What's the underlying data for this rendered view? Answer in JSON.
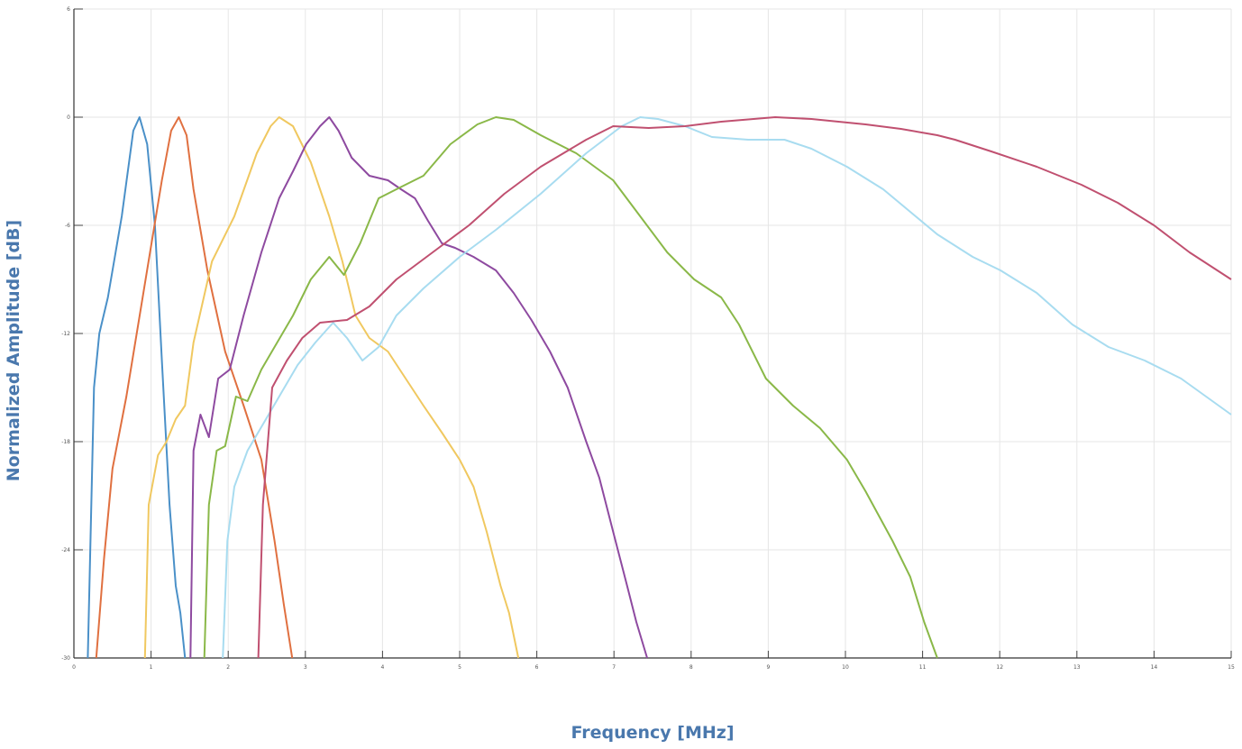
{
  "chart_data": {
    "type": "line",
    "title": "",
    "xlabel": "Frequency [MHz]",
    "ylabel": "Normalized Amplitude [dB]",
    "xlim": [
      0,
      15
    ],
    "ylim": [
      -30,
      6
    ],
    "xticks": [
      0,
      1,
      2,
      3,
      4,
      5,
      6,
      7,
      8,
      9,
      10,
      11,
      12,
      13,
      14,
      15
    ],
    "yticks": [
      6,
      0,
      -6,
      -12,
      -18,
      -24,
      -30
    ],
    "grid": true,
    "series": [
      {
        "color": "#4a90c8",
        "points": [
          [
            0.18,
            -30
          ],
          [
            0.26,
            -15
          ],
          [
            0.33,
            -12
          ],
          [
            0.44,
            -10
          ],
          [
            0.62,
            -5.5
          ],
          [
            0.77,
            -0.75
          ],
          [
            0.85,
            0
          ],
          [
            0.95,
            -1.5
          ],
          [
            1.05,
            -6
          ],
          [
            1.14,
            -13.5
          ],
          [
            1.24,
            -21.5
          ],
          [
            1.32,
            -26
          ],
          [
            1.38,
            -27.5
          ],
          [
            1.44,
            -30
          ]
        ]
      },
      {
        "color": "#e07040",
        "points": [
          [
            0.29,
            -30
          ],
          [
            0.39,
            -24.5
          ],
          [
            0.5,
            -19.5
          ],
          [
            0.68,
            -15.5
          ],
          [
            0.91,
            -9.5
          ],
          [
            1.14,
            -3.5
          ],
          [
            1.26,
            -0.75
          ],
          [
            1.36,
            0
          ],
          [
            1.46,
            -1
          ],
          [
            1.55,
            -4
          ],
          [
            1.73,
            -8.5
          ],
          [
            1.96,
            -13
          ],
          [
            2.2,
            -16
          ],
          [
            2.43,
            -19
          ],
          [
            2.6,
            -23.5
          ],
          [
            2.72,
            -27
          ],
          [
            2.83,
            -30
          ]
        ]
      },
      {
        "color": "#f0c860",
        "points": [
          [
            0.92,
            -30
          ],
          [
            0.97,
            -21.5
          ],
          [
            1.09,
            -18.75
          ],
          [
            1.2,
            -18
          ],
          [
            1.32,
            -16.75
          ],
          [
            1.44,
            -16
          ],
          [
            1.55,
            -12.5
          ],
          [
            1.79,
            -8
          ],
          [
            2.08,
            -5.5
          ],
          [
            2.37,
            -2
          ],
          [
            2.55,
            -0.5
          ],
          [
            2.66,
            0
          ],
          [
            2.84,
            -0.5
          ],
          [
            3.07,
            -2.5
          ],
          [
            3.31,
            -5.5
          ],
          [
            3.48,
            -8
          ],
          [
            3.65,
            -11
          ],
          [
            3.83,
            -12.25
          ],
          [
            4.07,
            -13
          ],
          [
            4.3,
            -14.5
          ],
          [
            4.53,
            -16
          ],
          [
            4.77,
            -17.5
          ],
          [
            5.0,
            -19
          ],
          [
            5.18,
            -20.5
          ],
          [
            5.35,
            -23
          ],
          [
            5.53,
            -26
          ],
          [
            5.64,
            -27.5
          ],
          [
            5.76,
            -30
          ]
        ]
      },
      {
        "color": "#8e4aa0",
        "points": [
          [
            1.51,
            -30
          ],
          [
            1.55,
            -18.5
          ],
          [
            1.64,
            -16.5
          ],
          [
            1.75,
            -17.75
          ],
          [
            1.87,
            -14.5
          ],
          [
            2.02,
            -14
          ],
          [
            2.2,
            -11
          ],
          [
            2.43,
            -7.5
          ],
          [
            2.66,
            -4.5
          ],
          [
            2.84,
            -3
          ],
          [
            3.01,
            -1.5
          ],
          [
            3.19,
            -0.5
          ],
          [
            3.31,
            0
          ],
          [
            3.43,
            -0.75
          ],
          [
            3.6,
            -2.25
          ],
          [
            3.83,
            -3.25
          ],
          [
            4.07,
            -3.5
          ],
          [
            4.24,
            -4
          ],
          [
            4.42,
            -4.5
          ],
          [
            4.59,
            -5.75
          ],
          [
            4.77,
            -7
          ],
          [
            4.94,
            -7.25
          ],
          [
            5.18,
            -7.75
          ],
          [
            5.47,
            -8.5
          ],
          [
            5.7,
            -9.75
          ],
          [
            5.93,
            -11.25
          ],
          [
            6.17,
            -13
          ],
          [
            6.4,
            -15
          ],
          [
            6.64,
            -18
          ],
          [
            6.81,
            -20
          ],
          [
            6.99,
            -23
          ],
          [
            7.17,
            -26
          ],
          [
            7.29,
            -28
          ],
          [
            7.43,
            -30
          ]
        ]
      },
      {
        "color": "#8ab848",
        "points": [
          [
            1.69,
            -30
          ],
          [
            1.75,
            -21.5
          ],
          [
            1.85,
            -18.5
          ],
          [
            1.96,
            -18.25
          ],
          [
            2.1,
            -15.5
          ],
          [
            2.25,
            -15.75
          ],
          [
            2.43,
            -14
          ],
          [
            2.6,
            -12.75
          ],
          [
            2.84,
            -11
          ],
          [
            3.07,
            -9
          ],
          [
            3.31,
            -7.75
          ],
          [
            3.5,
            -8.75
          ],
          [
            3.71,
            -7
          ],
          [
            3.95,
            -4.5
          ],
          [
            4.18,
            -4
          ],
          [
            4.53,
            -3.25
          ],
          [
            4.88,
            -1.5
          ],
          [
            5.23,
            -0.4
          ],
          [
            5.47,
            0
          ],
          [
            5.7,
            -0.15
          ],
          [
            6.05,
            -1
          ],
          [
            6.51,
            -2
          ],
          [
            6.99,
            -3.5
          ],
          [
            7.34,
            -5.5
          ],
          [
            7.69,
            -7.5
          ],
          [
            8.04,
            -9
          ],
          [
            8.39,
            -10
          ],
          [
            8.62,
            -11.5
          ],
          [
            8.97,
            -14.5
          ],
          [
            9.32,
            -16
          ],
          [
            9.67,
            -17.25
          ],
          [
            10.02,
            -19
          ],
          [
            10.26,
            -20.75
          ],
          [
            10.61,
            -23.5
          ],
          [
            10.84,
            -25.5
          ],
          [
            11.02,
            -28
          ],
          [
            11.19,
            -30
          ]
        ]
      },
      {
        "color": "#a8dcf0",
        "points": [
          [
            1.93,
            -30
          ],
          [
            1.99,
            -23.5
          ],
          [
            2.08,
            -20.5
          ],
          [
            2.25,
            -18.5
          ],
          [
            2.49,
            -16.75
          ],
          [
            2.66,
            -15.5
          ],
          [
            2.9,
            -13.75
          ],
          [
            3.13,
            -12.5
          ],
          [
            3.36,
            -11.4
          ],
          [
            3.54,
            -12.25
          ],
          [
            3.74,
            -13.5
          ],
          [
            3.95,
            -12.75
          ],
          [
            4.18,
            -11
          ],
          [
            4.53,
            -9.5
          ],
          [
            5.0,
            -7.75
          ],
          [
            5.47,
            -6.25
          ],
          [
            6.05,
            -4.25
          ],
          [
            6.64,
            -2
          ],
          [
            7.1,
            -0.5
          ],
          [
            7.34,
            0
          ],
          [
            7.57,
            -0.1
          ],
          [
            7.92,
            -0.5
          ],
          [
            8.27,
            -1.1
          ],
          [
            8.74,
            -1.25
          ],
          [
            9.21,
            -1.25
          ],
          [
            9.56,
            -1.75
          ],
          [
            10.02,
            -2.75
          ],
          [
            10.49,
            -4
          ],
          [
            10.84,
            -5.25
          ],
          [
            11.19,
            -6.5
          ],
          [
            11.65,
            -7.75
          ],
          [
            12.01,
            -8.5
          ],
          [
            12.48,
            -9.75
          ],
          [
            12.94,
            -11.5
          ],
          [
            13.41,
            -12.75
          ],
          [
            13.88,
            -13.5
          ],
          [
            14.35,
            -14.5
          ],
          [
            15,
            -16.5
          ]
        ]
      },
      {
        "color": "#c05070",
        "points": [
          [
            2.39,
            -30
          ],
          [
            2.45,
            -21.5
          ],
          [
            2.57,
            -15
          ],
          [
            2.76,
            -13.5
          ],
          [
            2.96,
            -12.25
          ],
          [
            3.19,
            -11.4
          ],
          [
            3.54,
            -11.25
          ],
          [
            3.83,
            -10.5
          ],
          [
            4.18,
            -9
          ],
          [
            4.65,
            -7.5
          ],
          [
            5.12,
            -6
          ],
          [
            5.58,
            -4.25
          ],
          [
            6.05,
            -2.75
          ],
          [
            6.64,
            -1.25
          ],
          [
            6.99,
            -0.5
          ],
          [
            7.45,
            -0.6
          ],
          [
            7.92,
            -0.5
          ],
          [
            8.39,
            -0.25
          ],
          [
            9.09,
            0
          ],
          [
            9.56,
            -0.1
          ],
          [
            10.26,
            -0.4
          ],
          [
            10.72,
            -0.65
          ],
          [
            11.19,
            -1
          ],
          [
            11.42,
            -1.25
          ],
          [
            11.89,
            -1.9
          ],
          [
            12.48,
            -2.75
          ],
          [
            13.06,
            -3.75
          ],
          [
            13.53,
            -4.75
          ],
          [
            14.0,
            -6
          ],
          [
            14.46,
            -7.5
          ],
          [
            15,
            -9
          ]
        ]
      }
    ]
  }
}
